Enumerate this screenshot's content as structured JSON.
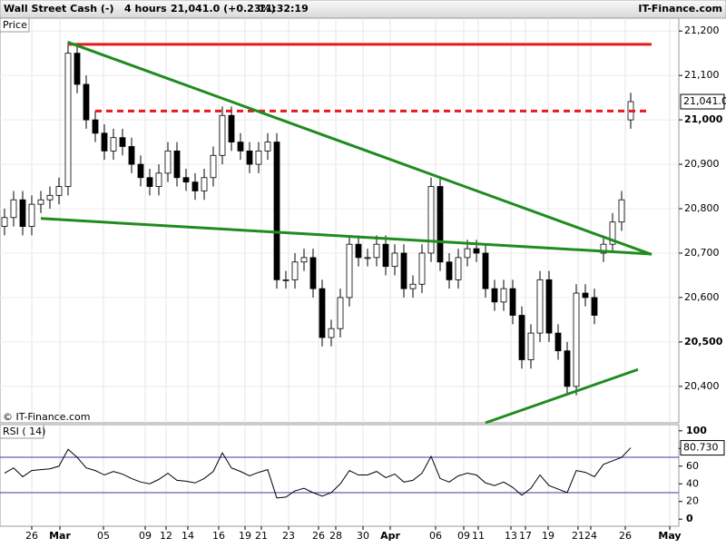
{
  "header": {
    "instrument": "Wall Street Cash (-)",
    "interval": "4 hours",
    "quote": "21,041.0 (+0.23%)",
    "time": "11:32:19",
    "brand": "IT-Finance.com",
    "panel_label": "Price",
    "copyright": "© IT-Finance.com"
  },
  "chart_data": [
    {
      "type": "candlestick",
      "color_up": "#ffffff",
      "color_down": "#000000",
      "grid": true,
      "xlim": [
        -0.5,
        74.3
      ],
      "ylim": [
        20318,
        21229
      ],
      "yticks": [
        {
          "value": 20400,
          "label": "20,400"
        },
        {
          "value": 20500,
          "label": "20,500"
        },
        {
          "value": 20600,
          "label": "20,600"
        },
        {
          "value": 20700,
          "label": "20,700"
        },
        {
          "value": 20800,
          "label": "20,800"
        },
        {
          "value": 20900,
          "label": "20,900"
        },
        {
          "value": 21000,
          "label": "21,000"
        },
        {
          "value": 21100,
          "label": "21,100"
        },
        {
          "value": 21200,
          "label": "21,200"
        }
      ],
      "xticks": [
        {
          "value": 3.0,
          "label": "26"
        },
        {
          "value": 6.1,
          "label": "Mar"
        },
        {
          "value": 10.9,
          "label": "05"
        },
        {
          "value": 15.5,
          "label": "09"
        },
        {
          "value": 17.8,
          "label": "12"
        },
        {
          "value": 20.2,
          "label": "14"
        },
        {
          "value": 23.6,
          "label": "16"
        },
        {
          "value": 26.5,
          "label": "19"
        },
        {
          "value": 28.3,
          "label": "21"
        },
        {
          "value": 31.3,
          "label": "23"
        },
        {
          "value": 34.6,
          "label": "26"
        },
        {
          "value": 36.5,
          "label": "28"
        },
        {
          "value": 39.5,
          "label": "30"
        },
        {
          "value": 42.5,
          "label": "Apr"
        },
        {
          "value": 47.5,
          "label": "06"
        },
        {
          "value": 50.6,
          "label": "09"
        },
        {
          "value": 52.2,
          "label": "11"
        },
        {
          "value": 55.8,
          "label": "13"
        },
        {
          "value": 57.4,
          "label": "17"
        },
        {
          "value": 59.9,
          "label": "19"
        },
        {
          "value": 63.2,
          "label": "21"
        },
        {
          "value": 64.6,
          "label": "24"
        },
        {
          "value": 68.4,
          "label": "26"
        },
        {
          "value": 73.3,
          "label": "May"
        }
      ],
      "open": [
        20760,
        20780,
        20820,
        20760,
        20810,
        20820,
        20830,
        20850,
        21150,
        21080,
        21000,
        20970,
        20930,
        20960,
        20940,
        20900,
        20870,
        20850,
        20880,
        20930,
        20870,
        20860,
        20840,
        20870,
        20920,
        21010,
        20950,
        20930,
        20900,
        20930,
        20950,
        20640,
        20640,
        20680,
        20690,
        20620,
        20510,
        20530,
        20600,
        20720,
        20690,
        20690,
        20720,
        20670,
        20700,
        20620,
        20630,
        20700,
        20850,
        20680,
        20640,
        20690,
        20710,
        20700,
        20620,
        20590,
        20620,
        20560,
        20460,
        20520,
        20640,
        20520,
        20480,
        20400,
        20610,
        20600,
        20700,
        20720,
        20770,
        21000
      ],
      "high": [
        20800,
        20840,
        20840,
        20830,
        20840,
        20850,
        20870,
        21170,
        21170,
        21100,
        21020,
        20990,
        20980,
        20980,
        20960,
        20920,
        20890,
        20900,
        20950,
        20950,
        20890,
        20880,
        20890,
        20940,
        21030,
        21030,
        20970,
        20950,
        20950,
        20970,
        20970,
        20660,
        20700,
        20710,
        20710,
        20640,
        20550,
        20620,
        20740,
        20740,
        20710,
        20740,
        20740,
        20720,
        20720,
        20650,
        20720,
        20870,
        20870,
        20700,
        20710,
        20730,
        20730,
        20720,
        20640,
        20640,
        20640,
        20580,
        20540,
        20660,
        20660,
        20540,
        20500,
        20630,
        20630,
        20620,
        20740,
        20790,
        20840,
        21061
      ],
      "low": [
        20740,
        20760,
        20740,
        20740,
        20790,
        20800,
        20810,
        20830,
        21060,
        20980,
        20950,
        20910,
        20910,
        20920,
        20880,
        20850,
        20830,
        20830,
        20860,
        20850,
        20840,
        20820,
        20820,
        20850,
        20900,
        20930,
        20910,
        20880,
        20880,
        20910,
        20620,
        20620,
        20620,
        20660,
        20600,
        20490,
        20490,
        20510,
        20580,
        20670,
        20670,
        20670,
        20650,
        20650,
        20600,
        20600,
        20610,
        20680,
        20660,
        20620,
        20620,
        20670,
        20680,
        20600,
        20570,
        20570,
        20540,
        20440,
        20440,
        20500,
        20500,
        20460,
        20380,
        20380,
        20580,
        20540,
        20680,
        20700,
        20750,
        20980
      ],
      "close": [
        20780,
        20820,
        20760,
        20810,
        20820,
        20830,
        20850,
        21150,
        21080,
        21000,
        20970,
        20930,
        20960,
        20940,
        20900,
        20870,
        20850,
        20880,
        20930,
        20870,
        20860,
        20840,
        20870,
        20920,
        21010,
        20950,
        20930,
        20900,
        20930,
        20950,
        20640,
        20640,
        20680,
        20690,
        20620,
        20510,
        20530,
        20600,
        20720,
        20690,
        20690,
        20720,
        20670,
        20700,
        20620,
        20630,
        20700,
        20850,
        20680,
        20640,
        20690,
        20710,
        20700,
        20620,
        20590,
        20620,
        20560,
        20460,
        20520,
        20640,
        20520,
        20480,
        20400,
        20610,
        20600,
        20560,
        20720,
        20770,
        20820,
        21041
      ],
      "last_price": {
        "value": 21041.0,
        "label": "21,041.0"
      },
      "lines": [
        {
          "x": [
            6.95,
            71.3
          ],
          "y": [
            21170,
            21170
          ],
          "color": "#e8191c",
          "dashed": false
        },
        {
          "x": [
            10.0,
            70.7
          ],
          "y": [
            21020,
            21020
          ],
          "color": "#e8191c",
          "dashed": true
        },
        {
          "x": [
            6.95,
            71.3
          ],
          "y": [
            21175,
            20697
          ],
          "color": "#1f8c1f",
          "dashed": false
        },
        {
          "x": [
            4.0,
            71.3
          ],
          "y": [
            20778,
            20698
          ],
          "color": "#1f8c1f",
          "dashed": false
        },
        {
          "x": [
            53.0,
            69.8
          ],
          "y": [
            20318,
            20438
          ],
          "color": "#1f8c1f",
          "dashed": false
        }
      ]
    },
    {
      "type": "line",
      "title": "RSI ( 14)",
      "color": "#000000",
      "xlim": [
        -0.5,
        74.3
      ],
      "ylim": [
        -8,
        107
      ],
      "yticks": [
        0,
        20,
        40,
        60,
        80,
        100
      ],
      "levels": [
        30,
        70
      ],
      "level_color": "#3a3aa0",
      "values": [
        52,
        58,
        48,
        55,
        56,
        57,
        60,
        79,
        70,
        58,
        55,
        50,
        54,
        51,
        46,
        42,
        40,
        45,
        52,
        44,
        43,
        41,
        46,
        54,
        75,
        58,
        54,
        49,
        53,
        56,
        24,
        25,
        32,
        35,
        30,
        26,
        30,
        40,
        55,
        50,
        50,
        54,
        47,
        51,
        42,
        44,
        52,
        71,
        46,
        42,
        49,
        52,
        50,
        41,
        38,
        42,
        36,
        27,
        35,
        50,
        38,
        34,
        30,
        55,
        53,
        48,
        62,
        66,
        70,
        80.73
      ],
      "last_value": {
        "value": 80.73,
        "label": "80.730"
      }
    }
  ]
}
